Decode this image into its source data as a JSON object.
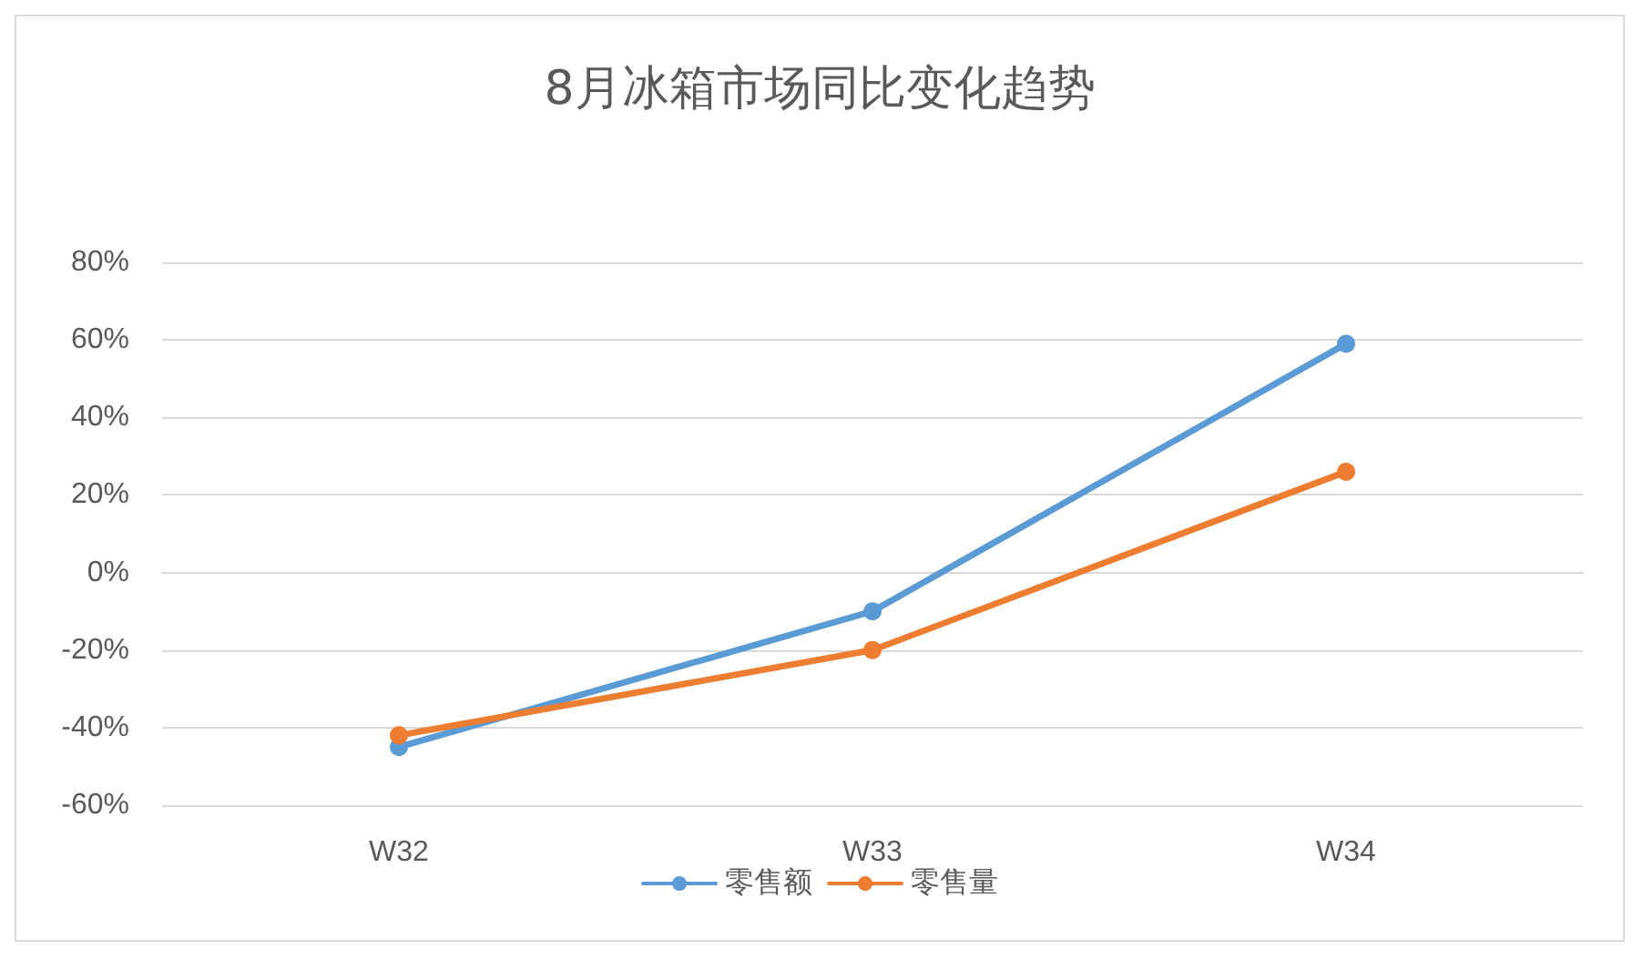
{
  "chart_data": {
    "type": "line",
    "title": "8月冰箱市场同比变化趋势",
    "categories": [
      "W32",
      "W33",
      "W34"
    ],
    "series": [
      {
        "name": "零售额",
        "color": "#5b9bd5",
        "values": [
          -45,
          -10,
          59
        ]
      },
      {
        "name": "零售量",
        "color": "#ed7d31",
        "values": [
          -42,
          -20,
          26
        ]
      }
    ],
    "ylim": [
      -60,
      80
    ],
    "yticks": [
      {
        "value": -60,
        "label": "-60%"
      },
      {
        "value": -40,
        "label": "-40%"
      },
      {
        "value": -20,
        "label": "-20%"
      },
      {
        "value": 0,
        "label": "0%"
      },
      {
        "value": 20,
        "label": "20%"
      },
      {
        "value": 40,
        "label": "40%"
      },
      {
        "value": 60,
        "label": "60%"
      },
      {
        "value": 80,
        "label": "80%"
      }
    ],
    "grid": "y",
    "legend": "bottom",
    "marker": "circle",
    "line_style": "solid"
  }
}
